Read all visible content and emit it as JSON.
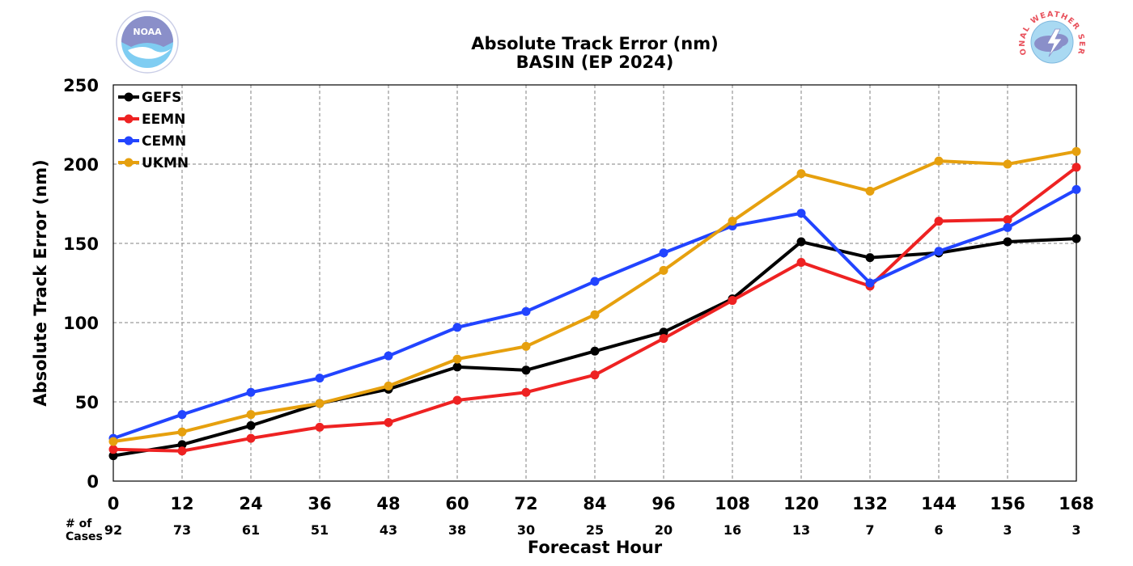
{
  "chart_data": {
    "type": "line",
    "title": "Absolute Track Error (nm)",
    "subtitle": "BASIN (EP 2024)",
    "xlabel": "Forecast Hour",
    "ylabel": "Absolute Track Error (nm)",
    "x": [
      0,
      12,
      24,
      36,
      48,
      60,
      72,
      84,
      96,
      108,
      120,
      132,
      144,
      156,
      168
    ],
    "xlim": [
      0,
      168
    ],
    "ylim": [
      0,
      250
    ],
    "yticks": [
      0,
      50,
      100,
      150,
      200,
      250
    ],
    "grid": true,
    "legend_position": "top-left",
    "cases_label_line1": "# of",
    "cases_label_line2": "Cases",
    "cases": [
      92,
      73,
      61,
      51,
      43,
      38,
      30,
      25,
      20,
      16,
      13,
      7,
      6,
      3,
      3
    ],
    "series": [
      {
        "name": "GEFS",
        "color": "#000000",
        "values": [
          16,
          23,
          35,
          49,
          58,
          72,
          70,
          82,
          94,
          115,
          151,
          141,
          144,
          151,
          153
        ]
      },
      {
        "name": "EEMN",
        "color": "#ee2222",
        "values": [
          20,
          19,
          27,
          34,
          37,
          51,
          56,
          67,
          90,
          114,
          138,
          123,
          164,
          165,
          198
        ]
      },
      {
        "name": "CEMN",
        "color": "#2244ff",
        "values": [
          27,
          42,
          56,
          65,
          79,
          97,
          107,
          126,
          144,
          161,
          169,
          125,
          145,
          160,
          184
        ]
      },
      {
        "name": "UKMN",
        "color": "#e6a00e",
        "values": [
          25,
          31,
          42,
          49,
          60,
          77,
          85,
          105,
          133,
          164,
          194,
          183,
          202,
          200,
          208
        ]
      }
    ]
  },
  "logos": {
    "left": {
      "icon": "noaa-logo",
      "text": "NOAA"
    },
    "right": {
      "icon": "nws-logo",
      "text": "NATIONAL WEATHER SERVICE"
    }
  }
}
